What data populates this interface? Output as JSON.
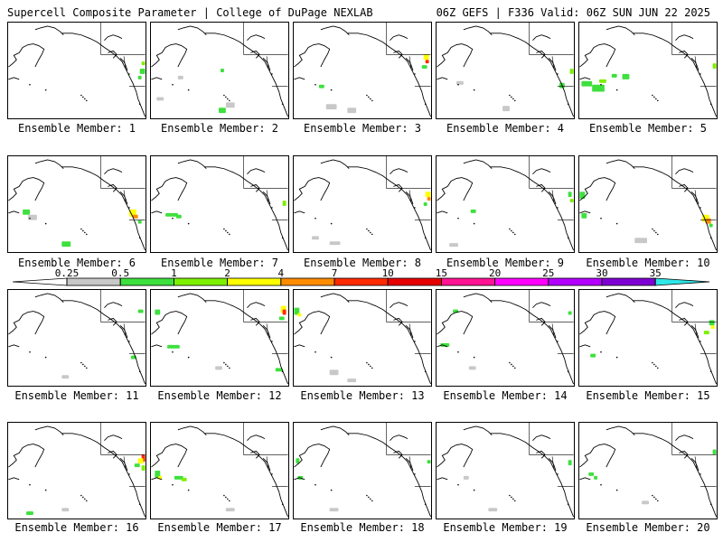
{
  "header": {
    "title": "Supercell Composite Parameter | College of DuPage NEXLAB",
    "run_info": "06Z GEFS | F336 Valid: 06Z SUN JUN 22 2025"
  },
  "panels": [
    {
      "label": "Ensemble Member: 1"
    },
    {
      "label": "Ensemble Member: 2"
    },
    {
      "label": "Ensemble Member: 3"
    },
    {
      "label": "Ensemble Member: 4"
    },
    {
      "label": "Ensemble Member: 5"
    },
    {
      "label": "Ensemble Member: 6"
    },
    {
      "label": "Ensemble Member: 7"
    },
    {
      "label": "Ensemble Member: 8"
    },
    {
      "label": "Ensemble Member: 9"
    },
    {
      "label": "Ensemble Member: 10"
    },
    {
      "label": "Ensemble Member: 11"
    },
    {
      "label": "Ensemble Member: 12"
    },
    {
      "label": "Ensemble Member: 13"
    },
    {
      "label": "Ensemble Member: 14"
    },
    {
      "label": "Ensemble Member: 15"
    },
    {
      "label": "Ensemble Member: 16"
    },
    {
      "label": "Ensemble Member: 17"
    },
    {
      "label": "Ensemble Member: 18"
    },
    {
      "label": "Ensemble Member: 19"
    },
    {
      "label": "Ensemble Member: 20"
    }
  ],
  "colorbar": {
    "ticks": [
      "0.25",
      "0.5",
      "1",
      "2",
      "4",
      "7",
      "10",
      "15",
      "20",
      "25",
      "30",
      "35"
    ],
    "colors": [
      "#c8c8c8",
      "#3ee03e",
      "#7cf000",
      "#ffff00",
      "#ff8c00",
      "#ff2a00",
      "#e60000",
      "#ff1493",
      "#ff00ff",
      "#b400ff",
      "#7d00d2",
      "#a06adc",
      "#30e6e6"
    ]
  },
  "colors": {
    "coastline": "#000000",
    "background": "#ffffff"
  }
}
